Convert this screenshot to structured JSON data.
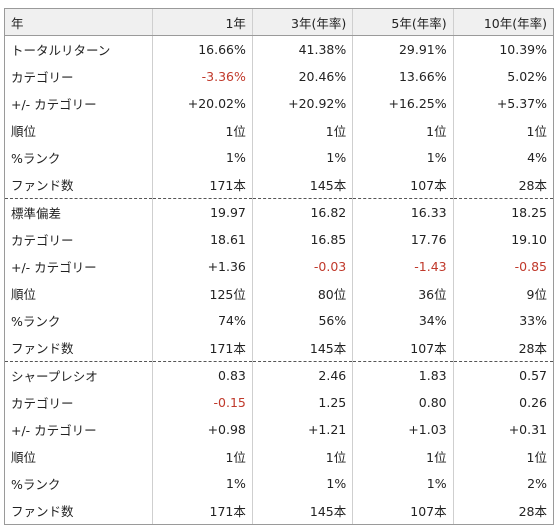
{
  "header": [
    "年",
    "1年",
    "3年(年率)",
    "5年(年率)",
    "10年(年率)"
  ],
  "sections": [
    {
      "rows": [
        {
          "label": "トータルリターン",
          "values": [
            "16.66%",
            "41.38%",
            "29.91%",
            "10.39%"
          ],
          "negative": [
            false,
            false,
            false,
            false
          ]
        },
        {
          "label": "カテゴリー",
          "values": [
            "-3.36%",
            "20.46%",
            "13.66%",
            "5.02%"
          ],
          "negative": [
            true,
            false,
            false,
            false
          ]
        },
        {
          "label": "+/- カテゴリー",
          "values": [
            "+20.02%",
            "+20.92%",
            "+16.25%",
            "+5.37%"
          ],
          "negative": [
            false,
            false,
            false,
            false
          ]
        },
        {
          "label": "順位",
          "values": [
            "1位",
            "1位",
            "1位",
            "1位"
          ],
          "negative": [
            false,
            false,
            false,
            false
          ]
        },
        {
          "label": "%ランク",
          "values": [
            "1%",
            "1%",
            "1%",
            "4%"
          ],
          "negative": [
            false,
            false,
            false,
            false
          ]
        },
        {
          "label": "ファンド数",
          "values": [
            "171本",
            "145本",
            "107本",
            "28本"
          ],
          "negative": [
            false,
            false,
            false,
            false
          ]
        }
      ]
    },
    {
      "rows": [
        {
          "label": "標準偏差",
          "values": [
            "19.97",
            "16.82",
            "16.33",
            "18.25"
          ],
          "negative": [
            false,
            false,
            false,
            false
          ]
        },
        {
          "label": "カテゴリー",
          "values": [
            "18.61",
            "16.85",
            "17.76",
            "19.10"
          ],
          "negative": [
            false,
            false,
            false,
            false
          ]
        },
        {
          "label": "+/- カテゴリー",
          "values": [
            "+1.36",
            "-0.03",
            "-1.43",
            "-0.85"
          ],
          "negative": [
            false,
            true,
            true,
            true
          ]
        },
        {
          "label": "順位",
          "values": [
            "125位",
            "80位",
            "36位",
            "9位"
          ],
          "negative": [
            false,
            false,
            false,
            false
          ]
        },
        {
          "label": "%ランク",
          "values": [
            "74%",
            "56%",
            "34%",
            "33%"
          ],
          "negative": [
            false,
            false,
            false,
            false
          ]
        },
        {
          "label": "ファンド数",
          "values": [
            "171本",
            "145本",
            "107本",
            "28本"
          ],
          "negative": [
            false,
            false,
            false,
            false
          ]
        }
      ]
    },
    {
      "rows": [
        {
          "label": "シャープレシオ",
          "values": [
            "0.83",
            "2.46",
            "1.83",
            "0.57"
          ],
          "negative": [
            false,
            false,
            false,
            false
          ]
        },
        {
          "label": "カテゴリー",
          "values": [
            "-0.15",
            "1.25",
            "0.80",
            "0.26"
          ],
          "negative": [
            true,
            false,
            false,
            false
          ]
        },
        {
          "label": "+/- カテゴリー",
          "values": [
            "+0.98",
            "+1.21",
            "+1.03",
            "+0.31"
          ],
          "negative": [
            false,
            false,
            false,
            false
          ]
        },
        {
          "label": "順位",
          "values": [
            "1位",
            "1位",
            "1位",
            "1位"
          ],
          "negative": [
            false,
            false,
            false,
            false
          ]
        },
        {
          "label": "%ランク",
          "values": [
            "1%",
            "1%",
            "1%",
            "2%"
          ],
          "negative": [
            false,
            false,
            false,
            false
          ]
        },
        {
          "label": "ファンド数",
          "values": [
            "171本",
            "145本",
            "107本",
            "28本"
          ],
          "negative": [
            false,
            false,
            false,
            false
          ]
        }
      ]
    }
  ],
  "colors": {
    "negative": "#c0392b",
    "header_bg": "#f0f0f0",
    "text": "#222222"
  }
}
